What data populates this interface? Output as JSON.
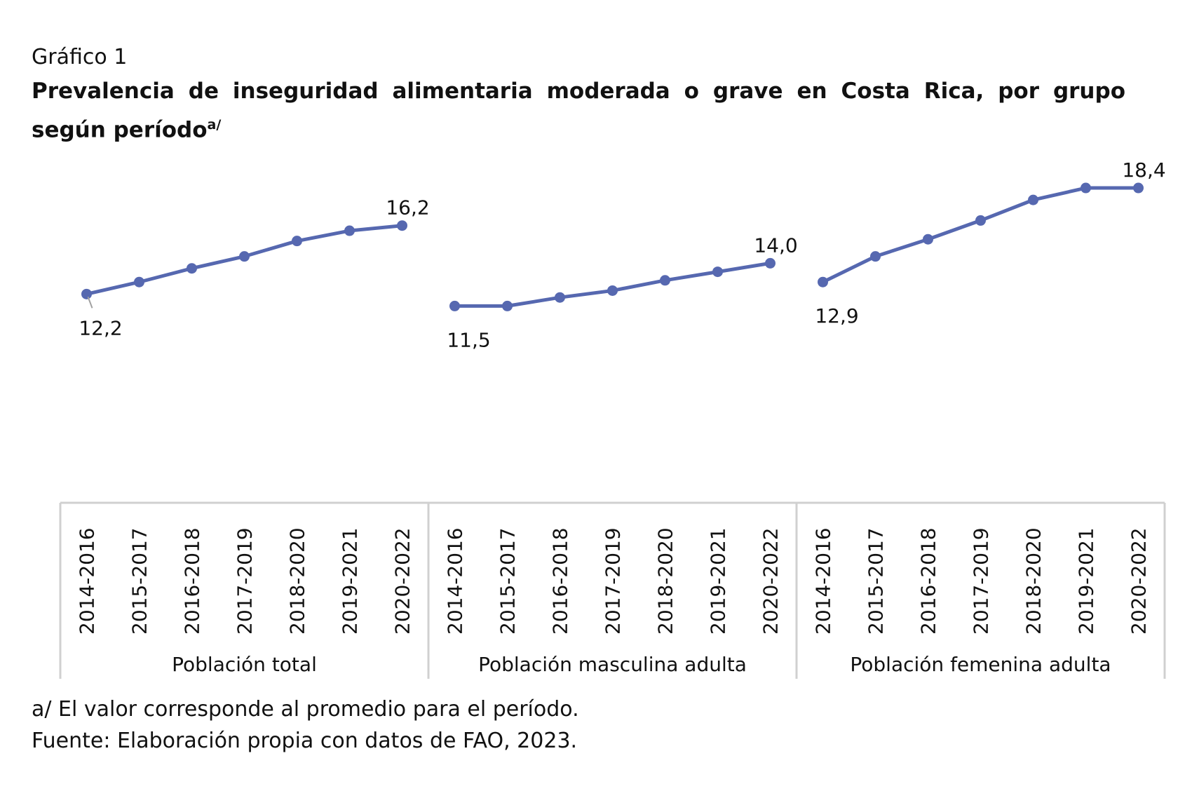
{
  "kicker": "Gráfico 1",
  "title": "Prevalencia de inseguridad alimentaria moderada o grave en Costa Rica, por grupo según período",
  "title_sup": "a/",
  "chart_data": {
    "type": "line",
    "title": "Prevalencia de inseguridad alimentaria moderada o grave en Costa Rica, por grupo según período",
    "categories": [
      "2014-2016",
      "2015-2017",
      "2016-2018",
      "2017-2019",
      "2018-2020",
      "2019-2021",
      "2020-2022"
    ],
    "groups": [
      {
        "name": "Población total",
        "values": [
          12.2,
          12.9,
          13.7,
          14.4,
          15.3,
          15.9,
          16.2
        ],
        "labels": {
          "first": "12,2",
          "last": "16,2"
        }
      },
      {
        "name": "Población masculina adulta",
        "values": [
          11.5,
          11.5,
          12.0,
          12.4,
          13.0,
          13.5,
          14.0
        ],
        "labels": {
          "first": "11,5",
          "last": "14,0"
        }
      },
      {
        "name": "Población femenina adulta",
        "values": [
          12.9,
          14.4,
          15.4,
          16.5,
          17.7,
          18.4,
          18.4
        ],
        "labels": {
          "first": "12,9",
          "last": "18,4"
        }
      }
    ],
    "ylim": [
      0,
      20
    ],
    "grid": false,
    "legend": "none",
    "color": "#5668b0"
  },
  "footnote": "a/ El valor corresponde al promedio para el período.",
  "source": "Fuente: Elaboración propia con datos de FAO, 2023."
}
